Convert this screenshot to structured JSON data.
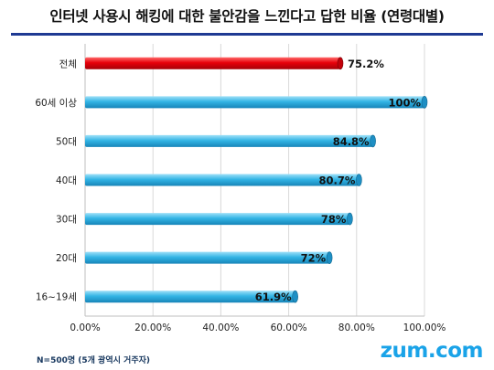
{
  "title": "인터넷 사용시 해킹에 대한 불안감을 느낀다고 답한 비율 (연령대별)",
  "footnote": "N=500명 (5개 광역시 거주자)",
  "brand": "zum.com",
  "colors": {
    "highlight": "#e8000b",
    "bar": "#33b5e5",
    "grid": "#d9d9d9",
    "title_rule": "#1f3a93"
  },
  "chart_data": {
    "type": "bar",
    "orientation": "horizontal",
    "categories": [
      "전체",
      "60세 이상",
      "50대",
      "40대",
      "30대",
      "20대",
      "16~19세"
    ],
    "values": [
      75.2,
      100,
      84.8,
      80.7,
      78,
      72,
      61.9
    ],
    "value_labels": [
      "75.2%",
      "100%",
      "84.8%",
      "80.7%",
      "78%",
      "72%",
      "61.9%"
    ],
    "highlight_index": 0,
    "xlim": [
      0,
      100
    ],
    "x_ticks": [
      "0.00%",
      "20.00%",
      "40.00%",
      "60.00%",
      "80.00%",
      "100.00%"
    ],
    "x_tick_values": [
      0,
      20,
      40,
      60,
      80,
      100
    ],
    "grid": true
  }
}
